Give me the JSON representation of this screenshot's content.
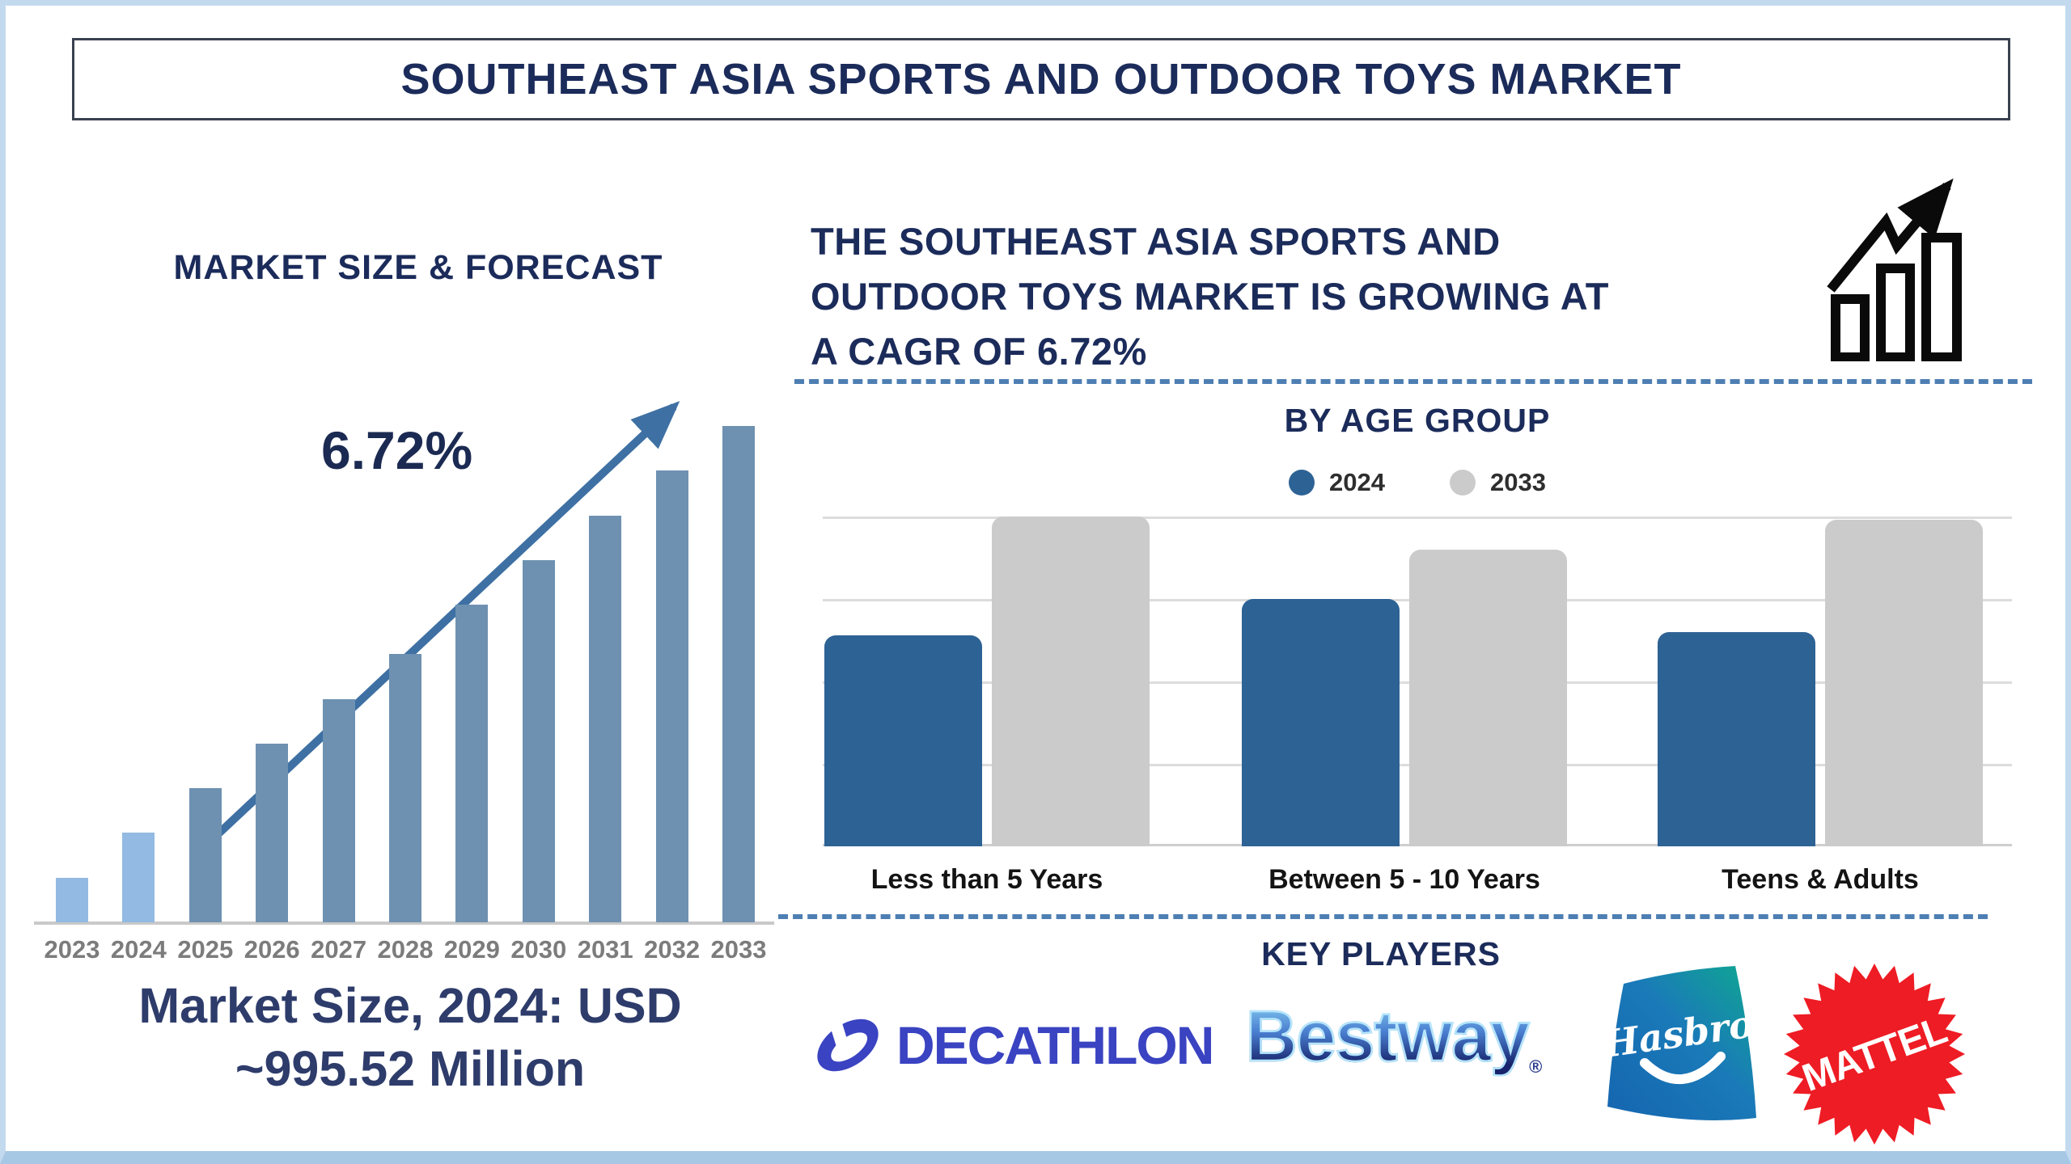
{
  "page": {
    "title": "SOUTHEAST ASIA SPORTS AND OUTDOOR TOYS MARKET"
  },
  "colors": {
    "navy_text": "#1b2b5a",
    "note_navy": "#2e3c6b",
    "frame_blue": "#c3daee",
    "frame_bottom_blue": "#a7c8e5",
    "title_border": "#39424f",
    "bar_light_blue": "#92bae2",
    "bar_steel_blue": "#6e91b1",
    "axis_gray": "#c9c9c9",
    "year_label_gray": "#7c7c7c",
    "trend_arrow_blue": "#3e70a3",
    "divider_dash_blue": "#4d7fb3",
    "age_2024_blue": "#2d6295",
    "age_2033_gray": "#cbcbcb",
    "gridline_gray": "#dcdcdc",
    "category_label_black": "#141414",
    "decathlon_blue": "#3a43c1",
    "mattel_red": "#ee1c24",
    "hasbro_teal": "#0fa890",
    "hasbro_blue": "#1565af",
    "bestway_light": "#8fd9f8",
    "bestway_dark": "#18256e",
    "growth_icon_black": "#0a0a0a"
  },
  "left_chart": {
    "heading": "MARKET SIZE & FORECAST",
    "cagr_annotation": "6.72%",
    "note_line1": "Market Size, 2024: USD",
    "note_line2": "~995.52 Million"
  },
  "right": {
    "growth_lines": [
      "THE SOUTHEAST ASIA SPORTS AND",
      "OUTDOOR TOYS MARKET IS GROWING AT",
      "A CAGR OF 6.72%"
    ],
    "age_chart": {
      "title": "BY AGE GROUP",
      "legend": [
        {
          "label": "2024",
          "color": "#2d6295"
        },
        {
          "label": "2033",
          "color": "#cbcbcb"
        }
      ]
    },
    "key_players_heading": "KEY PLAYERS",
    "players": {
      "decathlon": "DECATHLON",
      "bestway": "Bestway",
      "bestway_reg": "®",
      "hasbro": "Hasbro",
      "mattel": "MATTEL"
    }
  },
  "chart_data": [
    {
      "type": "bar",
      "title": "MARKET SIZE & FORECAST",
      "categories": [
        "2023",
        "2024",
        "2025",
        "2026",
        "2027",
        "2028",
        "2029",
        "2030",
        "2031",
        "2032",
        "2033"
      ],
      "values": [
        9,
        18,
        27,
        36,
        45,
        54,
        64,
        73,
        82,
        91,
        100
      ],
      "values_note": "relative bar heights in % of tallest bar; chart has no y-axis",
      "known_point": {
        "year": "2024",
        "value_usd_million": 995.52
      },
      "cagr_pct": 6.72,
      "annotation": "6.72%",
      "xlabel": "",
      "ylabel": "",
      "grid": false,
      "bar_color_rule": "2023-2024 light blue, 2025-2033 steel blue"
    },
    {
      "type": "bar",
      "title": "BY AGE GROUP",
      "categories": [
        "Less than 5 Years",
        "Between 5 - 10 Years",
        "Teens & Adults"
      ],
      "series": [
        {
          "name": "2024",
          "values": [
            64,
            75,
            65
          ]
        },
        {
          "name": "2033",
          "values": [
            100,
            90,
            99
          ]
        }
      ],
      "values_note": "relative bar heights in % of plot height; chart has no y-axis",
      "legend_position": "top",
      "grid": true
    }
  ]
}
